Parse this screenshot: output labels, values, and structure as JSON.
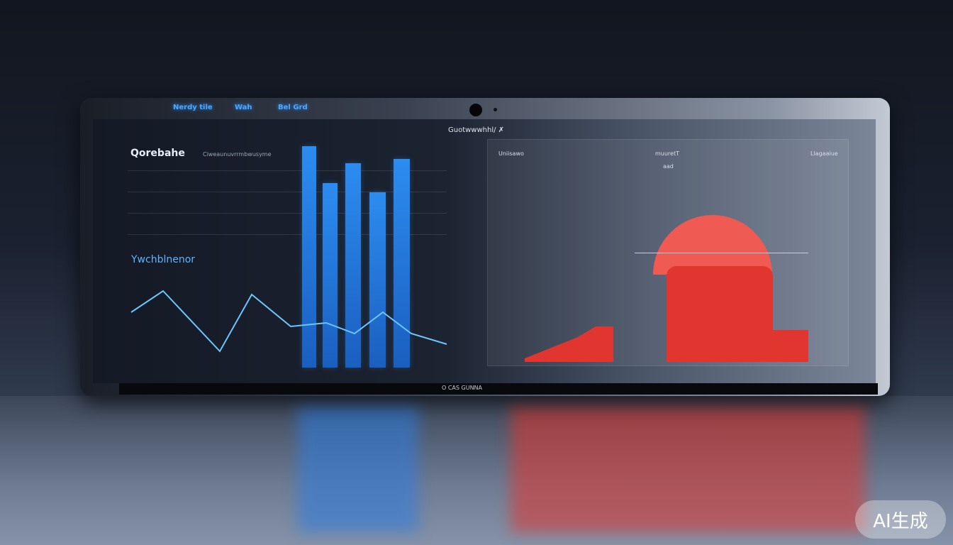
{
  "topbar": {
    "items": [
      "Nerdy tile",
      "Wah",
      "Bel Grd"
    ]
  },
  "dashboard_title": "Guotwwwhhl/ ✗",
  "left_panel": {
    "heading": "Qorebahe",
    "subheading": "Ciweaunuvrrmbwusyme",
    "section_label": "Ywchblnenor"
  },
  "right_panel": {
    "col1": "Uniisawo",
    "col2": "muuretT",
    "col3": "Llagaaiue",
    "note": "aad"
  },
  "bottom_label": "O CAS GUNNA",
  "watermark": "AI生成",
  "colors": {
    "blue": "#2d8cf0",
    "red": "#e0362f"
  }
}
